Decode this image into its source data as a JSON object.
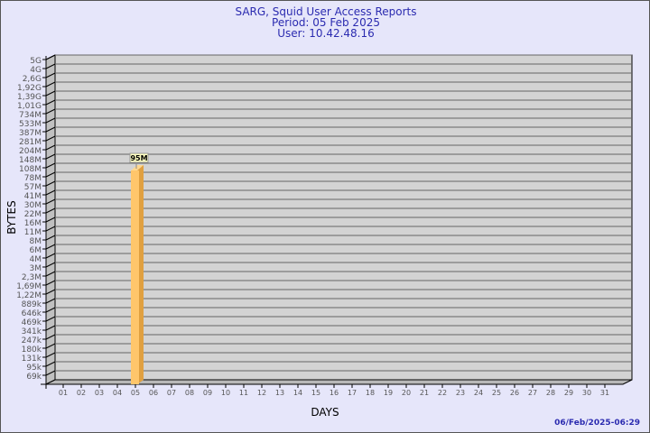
{
  "header": {
    "title": "SARG, Squid User Access Reports",
    "period": "Period: 05 Feb 2025",
    "user": "User: 10.42.48.16"
  },
  "footer": {
    "timestamp": "06/Feb/2025-06:29"
  },
  "chart_data": {
    "type": "bar",
    "xlabel": "DAYS",
    "ylabel": "BYTES",
    "y_scale": "log",
    "y_ticks": [
      "5G",
      "4G",
      "2,6G",
      "1,92G",
      "1,39G",
      "1,01G",
      "734M",
      "533M",
      "387M",
      "281M",
      "204M",
      "148M",
      "108M",
      "78M",
      "57M",
      "41M",
      "30M",
      "22M",
      "16M",
      "11M",
      "8M",
      "6M",
      "4M",
      "3M",
      "2,3M",
      "1,69M",
      "1,22M",
      "889k",
      "646k",
      "469k",
      "341k",
      "247k",
      "180k",
      "131k",
      "95k",
      "69k"
    ],
    "categories": [
      "01",
      "02",
      "03",
      "04",
      "05",
      "06",
      "07",
      "08",
      "09",
      "10",
      "11",
      "12",
      "13",
      "14",
      "15",
      "16",
      "17",
      "18",
      "19",
      "20",
      "21",
      "22",
      "23",
      "24",
      "25",
      "26",
      "27",
      "28",
      "29",
      "30",
      "31"
    ],
    "values": [
      null,
      null,
      null,
      null,
      "95M",
      null,
      null,
      null,
      null,
      null,
      null,
      null,
      null,
      null,
      null,
      null,
      null,
      null,
      null,
      null,
      null,
      null,
      null,
      null,
      null,
      null,
      null,
      null,
      null,
      null,
      null
    ],
    "data_labels": {
      "05": "95M"
    },
    "grid": true,
    "colors": {
      "bar": "#ffc66b",
      "bar_side": "#e0a040",
      "wall": "#d3d3d3",
      "title": "#2b2bb0"
    }
  }
}
